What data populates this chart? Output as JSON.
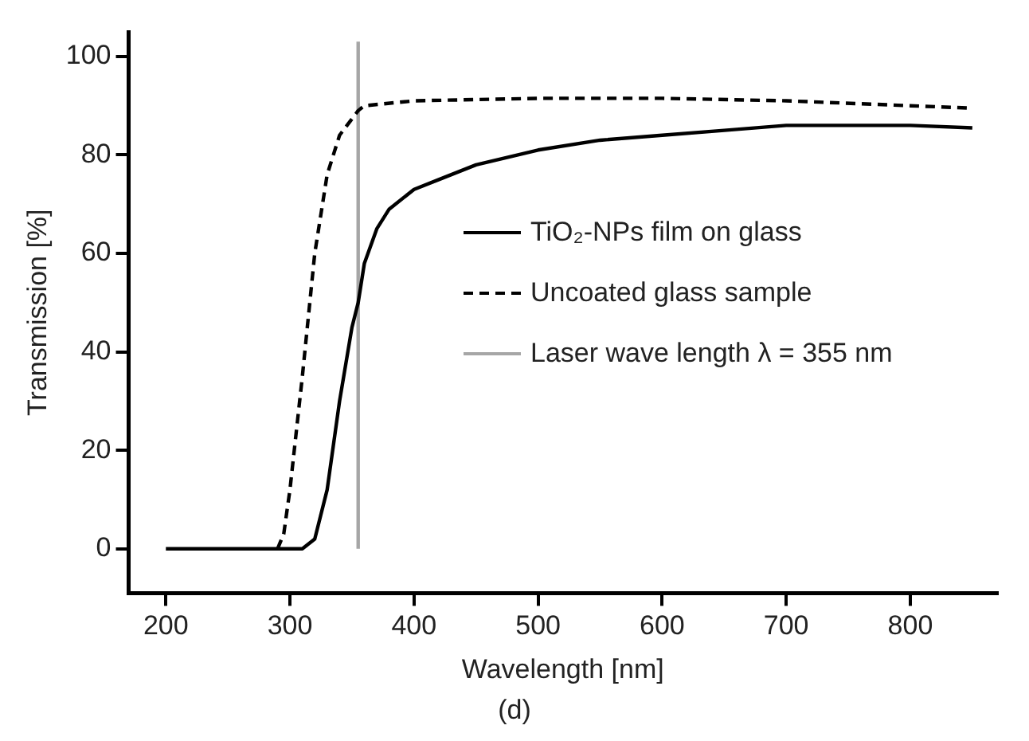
{
  "chart_data": {
    "type": "line",
    "xlabel": "Wavelength [nm]",
    "ylabel": "Transmission [%]",
    "annotations": [
      "(d)"
    ],
    "series": [
      {
        "name": "TiO₂-NPs film on glass",
        "color": "#000000",
        "line_style": "solid",
        "x": [
          200,
          310,
          320,
          330,
          340,
          350,
          355,
          360,
          370,
          380,
          400,
          420,
          450,
          500,
          550,
          600,
          650,
          700,
          800,
          850
        ],
        "values": [
          0,
          0,
          2,
          12,
          30,
          45,
          50,
          58,
          65,
          69,
          73,
          75,
          78,
          81,
          83,
          84,
          85,
          86,
          86,
          85.5
        ]
      },
      {
        "name": "Uncoated glass sample",
        "color": "#000000",
        "line_style": "dashed",
        "x": [
          290,
          295,
          300,
          310,
          320,
          330,
          340,
          355,
          360,
          400,
          500,
          600,
          700,
          800,
          850
        ],
        "values": [
          0,
          3,
          12,
          35,
          60,
          76,
          84,
          89,
          90,
          91,
          91.5,
          91.5,
          91,
          90,
          89.5
        ]
      },
      {
        "name": "Laser wave length λ = 355 nm",
        "color": "#a6a6a6",
        "line_style": "solid",
        "x": [
          355,
          355
        ],
        "values": [
          0,
          103
        ]
      }
    ],
    "xlim": [
      170,
      870
    ],
    "xticks": [
      200,
      300,
      400,
      500,
      600,
      700,
      800
    ],
    "ylim": [
      -9,
      105
    ],
    "yticks": [
      0,
      20,
      40,
      60,
      80,
      100
    ],
    "grid": false,
    "legend": "right",
    "marker": "none"
  }
}
